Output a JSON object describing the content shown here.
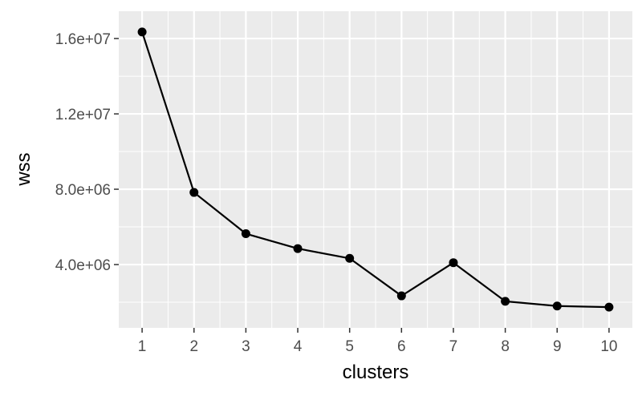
{
  "chart_data": {
    "type": "line",
    "xlabel": "clusters",
    "ylabel": "wss",
    "x": [
      1,
      2,
      3,
      4,
      5,
      6,
      7,
      8,
      9,
      10
    ],
    "series": [
      {
        "values": [
          16350000,
          7830000,
          5640000,
          4850000,
          4330000,
          2340000,
          4100000,
          2050000,
          1800000,
          1740000
        ]
      }
    ],
    "xlim": [
      0.55,
      10.45
    ],
    "ylim": [
      640000,
      17450000
    ],
    "y_ticks": [
      4000000,
      8000000,
      12000000,
      16000000
    ],
    "y_tick_labels": [
      "4.0e+06",
      "8.0e+06",
      "1.2e+07",
      "1.6e+07"
    ],
    "x_tick_labels": [
      "1",
      "2",
      "3",
      "4",
      "5",
      "6",
      "7",
      "8",
      "9",
      "10"
    ],
    "grid": true,
    "style": "ggplot-grey",
    "colors": {
      "panel": "#ebebeb",
      "grid": "#ffffff",
      "line": "#000000",
      "tick_text": "#4d4d4d"
    }
  }
}
